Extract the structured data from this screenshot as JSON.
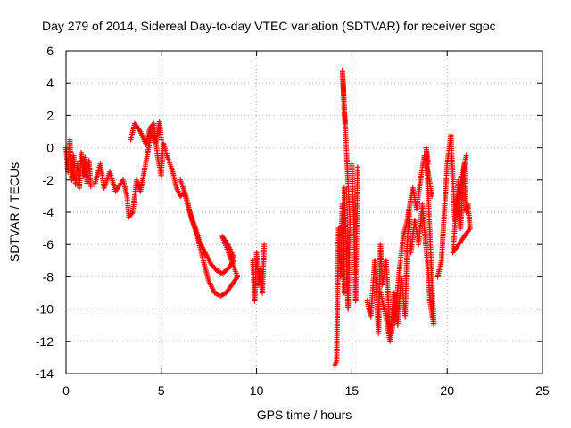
{
  "chart_data": {
    "type": "scatter",
    "title": "Day 279 of 2014, Sidereal Day-to-day VTEC variation (SDTVAR) for receiver sgoc",
    "xlabel": "GPS time / hours",
    "ylabel": "SDTVAR / TECUs",
    "xlim": [
      0,
      25
    ],
    "ylim": [
      -14,
      6
    ],
    "xticks": [
      0,
      5,
      10,
      15,
      20,
      25
    ],
    "yticks": [
      -14,
      -12,
      -10,
      -8,
      -6,
      -4,
      -2,
      0,
      2,
      4,
      6
    ],
    "grid": true,
    "marker": "plus",
    "color": "#ff0000",
    "series": [
      {
        "name": "SDTVAR",
        "segments": [
          [
            [
              0.0,
              0.0
            ],
            [
              0.1,
              -1.5
            ],
            [
              0.2,
              0.5
            ],
            [
              0.3,
              -2.0
            ],
            [
              0.4,
              -0.5
            ],
            [
              0.5,
              -2.3
            ],
            [
              0.6,
              -1.0
            ],
            [
              0.7,
              -2.5
            ],
            [
              0.8,
              -0.3
            ],
            [
              0.9,
              -1.8
            ],
            [
              1.0,
              -0.6
            ],
            [
              1.1,
              -2.2
            ],
            [
              1.2,
              -0.8
            ],
            [
              1.3,
              -2.4
            ]
          ],
          [
            [
              1.5,
              -2.3
            ],
            [
              1.8,
              -1.0
            ],
            [
              2.0,
              -2.5
            ],
            [
              2.3,
              -1.5
            ],
            [
              2.6,
              -2.7
            ],
            [
              3.0,
              -2.0
            ],
            [
              3.2,
              -3.0
            ],
            [
              3.3,
              -4.3
            ],
            [
              3.5,
              -4.0
            ],
            [
              3.7,
              -2.0
            ],
            [
              3.9,
              -2.7
            ],
            [
              4.1,
              -1.5
            ],
            [
              4.3,
              -0.2
            ],
            [
              4.5,
              1.0
            ],
            [
              4.7,
              0.3
            ],
            [
              4.9,
              1.6
            ],
            [
              5.0,
              0.5
            ]
          ],
          [
            [
              3.4,
              0.5
            ],
            [
              3.6,
              1.5
            ],
            [
              3.9,
              1.0
            ],
            [
              4.2,
              0.2
            ],
            [
              4.4,
              1.2
            ],
            [
              4.6,
              1.5
            ],
            [
              4.8,
              -0.5
            ],
            [
              5.0,
              -1.8
            ],
            [
              5.1,
              0.3
            ],
            [
              5.3,
              -0.5
            ],
            [
              5.6,
              -1.5
            ],
            [
              5.8,
              -2.5
            ],
            [
              6.0,
              -3.0
            ],
            [
              6.2,
              -2.8
            ],
            [
              6.5,
              -4.0
            ],
            [
              6.8,
              -5.0
            ],
            [
              7.0,
              -5.8
            ],
            [
              7.3,
              -6.5
            ],
            [
              7.6,
              -7.2
            ],
            [
              7.9,
              -7.6
            ],
            [
              8.2,
              -7.8
            ],
            [
              8.5,
              -7.5
            ],
            [
              8.8,
              -7.0
            ]
          ],
          [
            [
              6.0,
              -2.0
            ],
            [
              6.3,
              -3.0
            ],
            [
              6.6,
              -4.5
            ],
            [
              6.9,
              -5.5
            ],
            [
              7.2,
              -7.0
            ],
            [
              7.5,
              -8.3
            ],
            [
              7.8,
              -9.0
            ],
            [
              8.1,
              -9.2
            ],
            [
              8.4,
              -9.0
            ],
            [
              8.7,
              -8.5
            ],
            [
              9.0,
              -8.0
            ],
            [
              8.2,
              -5.5
            ],
            [
              8.5,
              -6.0
            ],
            [
              8.8,
              -6.8
            ]
          ],
          [
            [
              9.8,
              -7.0
            ],
            [
              9.9,
              -9.5
            ],
            [
              10.0,
              -6.5
            ],
            [
              10.1,
              -8.5
            ],
            [
              10.2,
              -7.5
            ],
            [
              10.3,
              -9.0
            ],
            [
              10.4,
              -6.0
            ]
          ],
          [
            [
              14.1,
              -13.5
            ],
            [
              14.2,
              -13.2
            ],
            [
              14.3,
              -5.0
            ],
            [
              14.4,
              -8.0
            ],
            [
              14.5,
              -3.5
            ],
            [
              14.6,
              -9.0
            ],
            [
              14.6,
              -2.5
            ],
            [
              14.7,
              -6.0
            ],
            [
              14.8,
              -10.0
            ],
            [
              14.9,
              -4.5
            ],
            [
              14.5,
              4.8
            ],
            [
              14.55,
              4.0
            ],
            [
              14.6,
              2.4
            ],
            [
              14.65,
              1.5
            ]
          ],
          [
            [
              15.0,
              -1.0
            ],
            [
              15.1,
              -4.5
            ],
            [
              15.2,
              -9.5
            ],
            [
              15.3,
              -1.2
            ]
          ],
          [
            [
              15.8,
              -9.5
            ],
            [
              16.0,
              -10.5
            ],
            [
              16.2,
              -7.0
            ],
            [
              16.4,
              -11.5
            ],
            [
              16.5,
              -6.0
            ],
            [
              16.6,
              -8.5
            ],
            [
              16.8,
              -7.0
            ],
            [
              17.0,
              -11.5
            ],
            [
              17.2,
              -9.0
            ],
            [
              17.4,
              -11.0
            ],
            [
              17.6,
              -8.0
            ],
            [
              17.8,
              -10.5
            ],
            [
              17.9,
              -6.0
            ],
            [
              18.0,
              -4.0
            ],
            [
              18.1,
              -6.5
            ],
            [
              18.3,
              -4.5
            ],
            [
              18.5,
              -6.0
            ],
            [
              18.7,
              -3.5
            ],
            [
              18.8,
              -5.0
            ],
            [
              19.0,
              -7.5
            ],
            [
              19.1,
              -9.5
            ],
            [
              19.3,
              -11.0
            ],
            [
              18.9,
              0.0
            ],
            [
              19.0,
              -1.0
            ]
          ],
          [
            [
              16.5,
              -9.0
            ],
            [
              16.8,
              -10.5
            ],
            [
              17.0,
              -12.0
            ],
            [
              17.3,
              -10.0
            ],
            [
              17.5,
              -7.5
            ],
            [
              17.7,
              -5.5
            ],
            [
              17.9,
              -4.5
            ],
            [
              18.2,
              -2.5
            ],
            [
              18.4,
              -3.8
            ],
            [
              18.6,
              -2.0
            ],
            [
              18.8,
              -0.5
            ],
            [
              19.0,
              -1.5
            ],
            [
              19.2,
              -3.0
            ]
          ],
          [
            [
              19.5,
              -8.0
            ],
            [
              19.7,
              -7.0
            ],
            [
              19.8,
              -5.0
            ],
            [
              19.9,
              -3.0
            ],
            [
              20.0,
              -1.0
            ],
            [
              20.2,
              0.8
            ],
            [
              20.4,
              -4.5
            ],
            [
              20.6,
              -2.0
            ],
            [
              20.7,
              -5.0
            ],
            [
              20.8,
              -3.0
            ],
            [
              20.9,
              -1.0
            ],
            [
              21.0,
              -4.0
            ],
            [
              21.1,
              -3.5
            ],
            [
              21.2,
              -5.0
            ],
            [
              20.3,
              -6.5
            ],
            [
              20.5,
              -3.5
            ],
            [
              21.0,
              -0.5
            ]
          ]
        ]
      }
    ]
  }
}
